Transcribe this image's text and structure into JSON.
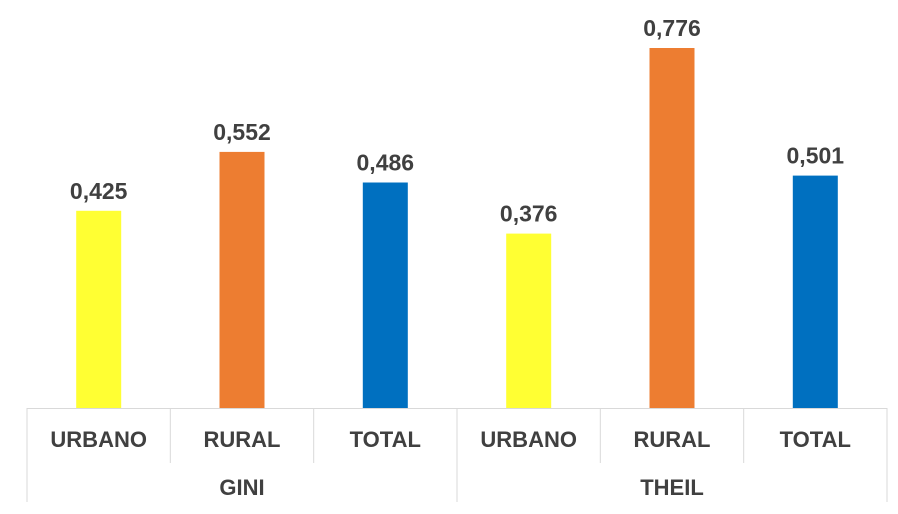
{
  "chart_data": {
    "type": "bar",
    "groups": [
      {
        "name": "GINI",
        "categories": [
          "URBANO",
          "RURAL",
          "TOTAL"
        ],
        "values": [
          0.425,
          0.552,
          0.486
        ],
        "value_labels": [
          "0,425",
          "0,552",
          "0,486"
        ]
      },
      {
        "name": "THEIL",
        "categories": [
          "URBANO",
          "RURAL",
          "TOTAL"
        ],
        "values": [
          0.376,
          0.776,
          0.501
        ],
        "value_labels": [
          "0,376",
          "0,776",
          "0,501"
        ]
      }
    ],
    "category_colors": {
      "URBANO": "#ffff33",
      "RURAL": "#ed7d31",
      "TOTAL": "#0070c0"
    },
    "ylim": [
      0,
      0.776
    ],
    "grid": false,
    "legend": "none"
  }
}
